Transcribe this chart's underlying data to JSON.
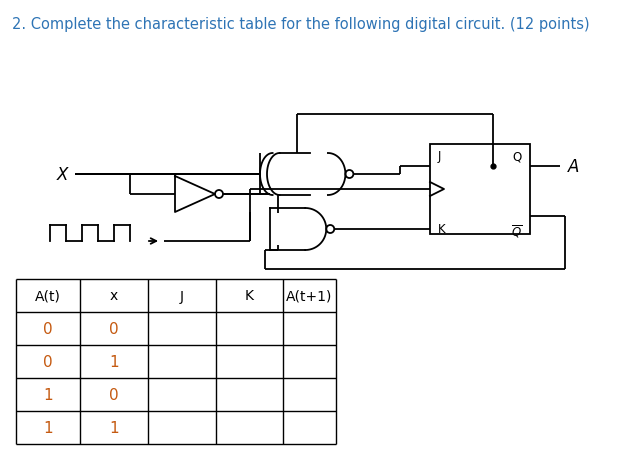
{
  "title": "2. Complete the characteristic table for the following digital circuit. (12 points)",
  "title_color": "#2E74B5",
  "title_fontsize": 10.5,
  "background_color": "#ffffff",
  "table_headers": [
    "A(t)",
    "x",
    "J",
    "K",
    "A(t+1)"
  ],
  "table_rows": [
    [
      "0",
      "0",
      "",
      "",
      ""
    ],
    [
      "0",
      "1",
      "",
      "",
      ""
    ],
    [
      "1",
      "0",
      "",
      "",
      ""
    ],
    [
      "1",
      "1",
      "",
      "",
      ""
    ]
  ],
  "number_color": "#C55A11",
  "header_color": "#000000",
  "lw": 1.3,
  "bubble_r": 0.04
}
